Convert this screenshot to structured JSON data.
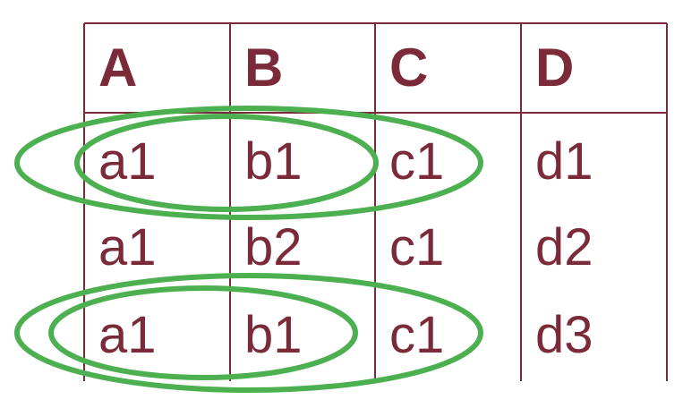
{
  "colors": {
    "text": "#7a2a38",
    "grid": "#7a2a38",
    "highlight": "#4caf50"
  },
  "table": {
    "headers": [
      "A",
      "B",
      "C",
      "D"
    ],
    "rows": [
      [
        "a1",
        "b1",
        "c1",
        "d1"
      ],
      [
        "a1",
        "b2",
        "c1",
        "d2"
      ],
      [
        "a1",
        "b1",
        "c1",
        "d3"
      ]
    ]
  },
  "highlights": [
    {
      "row": 0,
      "columns": [
        "A",
        "B"
      ]
    },
    {
      "row": 0,
      "columns": [
        "A",
        "B",
        "C"
      ]
    },
    {
      "row": 2,
      "columns": [
        "A",
        "B"
      ]
    },
    {
      "row": 2,
      "columns": [
        "A",
        "B",
        "C"
      ]
    }
  ]
}
